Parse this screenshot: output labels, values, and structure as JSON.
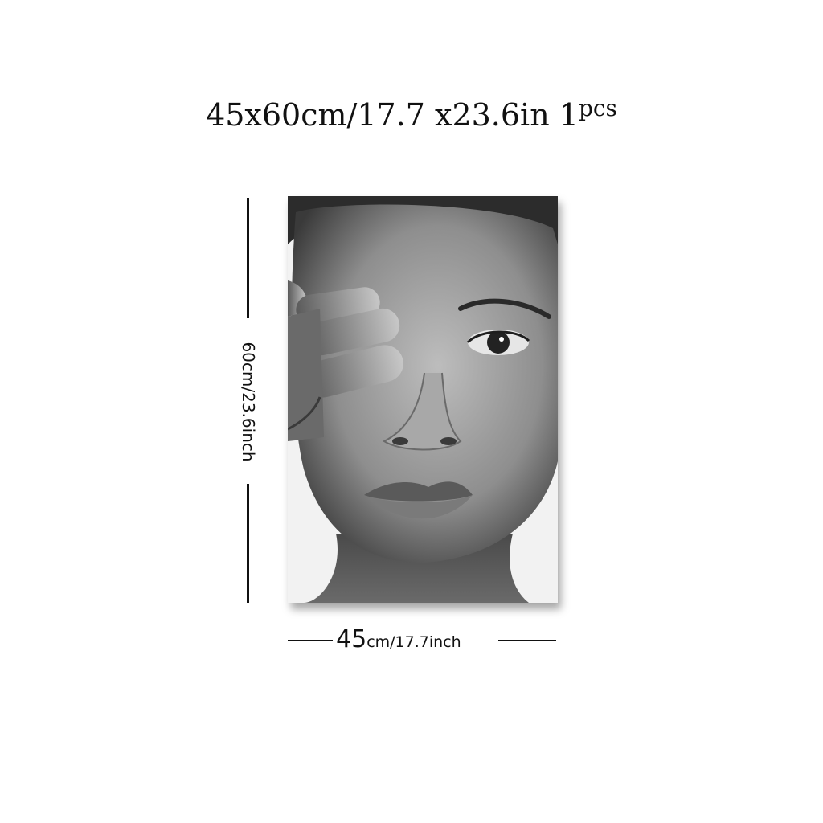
{
  "title": {
    "main": "45x60cm/17.7 x23.6in 1",
    "pcs": "pcs"
  },
  "dimensions": {
    "height_label": "60cm/23.6inch",
    "width_number": "45",
    "width_rest": "cm/17.7inch"
  },
  "poster": {
    "image": "black-and-white-portrait",
    "colors": {
      "background": "#f4f4f4",
      "skin": "#9a9a9a",
      "shadow": "#2a2a2a"
    }
  }
}
